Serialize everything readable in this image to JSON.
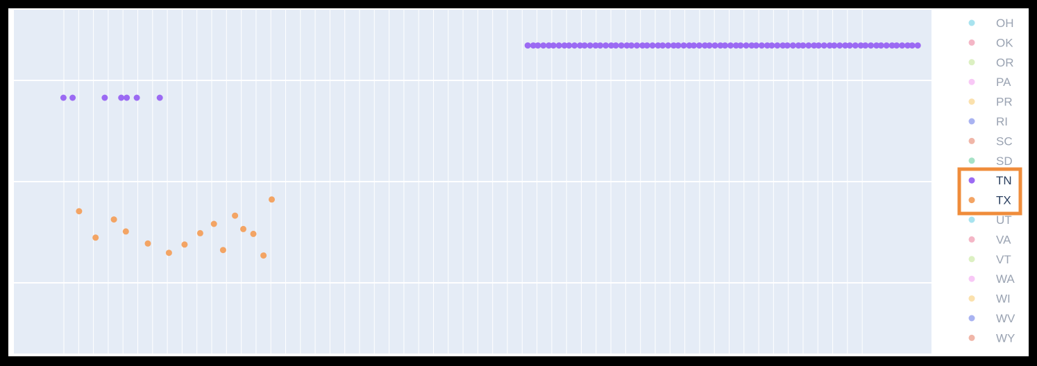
{
  "chart_data": {
    "type": "scatter",
    "title": "",
    "xlabel": "",
    "ylabel": "",
    "grid": true,
    "xlim": [
      0,
      100
    ],
    "ylim": [
      0,
      100
    ],
    "legend_placement": "right",
    "legend": [
      {
        "label": "OH",
        "color": "#a8e3ef",
        "highlighted": false
      },
      {
        "label": "OK",
        "color": "#f4b6c6",
        "highlighted": false
      },
      {
        "label": "OR",
        "color": "#dcf0c2",
        "highlighted": false
      },
      {
        "label": "PA",
        "color": "#f8c8f6",
        "highlighted": false
      },
      {
        "label": "PR",
        "color": "#fbe1ad",
        "highlighted": false
      },
      {
        "label": "RI",
        "color": "#a9b3f1",
        "highlighted": false
      },
      {
        "label": "SC",
        "color": "#f0b6a8",
        "highlighted": false
      },
      {
        "label": "SD",
        "color": "#a6e2c6",
        "highlighted": false
      },
      {
        "label": "TN",
        "color": "#9b6af3",
        "highlighted": true
      },
      {
        "label": "TX",
        "color": "#f3a464",
        "highlighted": true
      },
      {
        "label": "UT",
        "color": "#a8e3ef",
        "highlighted": false
      },
      {
        "label": "VA",
        "color": "#f4b6c6",
        "highlighted": false
      },
      {
        "label": "VT",
        "color": "#dcf0c2",
        "highlighted": false
      },
      {
        "label": "WA",
        "color": "#f8c8f6",
        "highlighted": false
      },
      {
        "label": "WI",
        "color": "#fbe1ad",
        "highlighted": false
      },
      {
        "label": "WV",
        "color": "#a9b3f1",
        "highlighted": false
      },
      {
        "label": "WY",
        "color": "#f0b6a8",
        "highlighted": false
      }
    ],
    "series": [
      {
        "color": "#9b6af3",
        "points": [
          [
            5.4,
            74.4
          ],
          [
            6.4,
            74.4
          ],
          [
            9.9,
            74.4
          ],
          [
            11.7,
            74.4
          ],
          [
            12.3,
            74.4
          ],
          [
            13.4,
            74.4
          ],
          [
            15.9,
            74.4
          ],
          [
            56.0,
            89.6
          ],
          [
            56.6,
            89.6
          ],
          [
            57.1,
            89.6
          ],
          [
            57.7,
            89.6
          ],
          [
            58.3,
            89.6
          ],
          [
            58.8,
            89.6
          ],
          [
            59.4,
            89.6
          ],
          [
            60.0,
            89.6
          ],
          [
            60.5,
            89.6
          ],
          [
            61.1,
            89.6
          ],
          [
            61.7,
            89.6
          ],
          [
            62.2,
            89.6
          ],
          [
            62.8,
            89.6
          ],
          [
            63.4,
            89.6
          ],
          [
            63.9,
            89.6
          ],
          [
            64.5,
            89.6
          ],
          [
            65.1,
            89.6
          ],
          [
            65.6,
            89.6
          ],
          [
            66.2,
            89.6
          ],
          [
            66.8,
            89.6
          ],
          [
            67.3,
            89.6
          ],
          [
            67.9,
            89.6
          ],
          [
            68.5,
            89.6
          ],
          [
            69.0,
            89.6
          ],
          [
            69.6,
            89.6
          ],
          [
            70.2,
            89.6
          ],
          [
            70.7,
            89.6
          ],
          [
            71.3,
            89.6
          ],
          [
            71.9,
            89.6
          ],
          [
            72.4,
            89.6
          ],
          [
            73.0,
            89.6
          ],
          [
            73.6,
            89.6
          ],
          [
            74.1,
            89.6
          ],
          [
            74.7,
            89.6
          ],
          [
            75.3,
            89.6
          ],
          [
            75.8,
            89.6
          ],
          [
            76.4,
            89.6
          ],
          [
            77.0,
            89.6
          ],
          [
            77.5,
            89.6
          ],
          [
            78.1,
            89.6
          ],
          [
            78.7,
            89.6
          ],
          [
            79.2,
            89.6
          ],
          [
            79.8,
            89.6
          ],
          [
            80.4,
            89.6
          ],
          [
            80.9,
            89.6
          ],
          [
            81.5,
            89.6
          ],
          [
            82.1,
            89.6
          ],
          [
            82.6,
            89.6
          ],
          [
            83.2,
            89.6
          ],
          [
            83.8,
            89.6
          ],
          [
            84.3,
            89.6
          ],
          [
            84.9,
            89.6
          ],
          [
            85.5,
            89.6
          ],
          [
            86.0,
            89.6
          ],
          [
            86.6,
            89.6
          ],
          [
            87.2,
            89.6
          ],
          [
            87.7,
            89.6
          ],
          [
            88.3,
            89.6
          ],
          [
            88.9,
            89.6
          ],
          [
            89.4,
            89.6
          ],
          [
            90.0,
            89.6
          ],
          [
            90.6,
            89.6
          ],
          [
            91.1,
            89.6
          ],
          [
            91.7,
            89.6
          ],
          [
            92.3,
            89.6
          ],
          [
            92.8,
            89.6
          ],
          [
            93.4,
            89.6
          ],
          [
            94.0,
            89.6
          ],
          [
            94.5,
            89.6
          ],
          [
            95.1,
            89.6
          ],
          [
            95.7,
            89.6
          ],
          [
            96.2,
            89.6
          ],
          [
            96.8,
            89.6
          ],
          [
            97.4,
            89.6
          ],
          [
            97.9,
            89.6
          ],
          [
            98.5,
            89.6
          ]
        ]
      },
      {
        "color": "#f3a464",
        "points": [
          [
            7.1,
            41.4
          ],
          [
            8.9,
            33.7
          ],
          [
            10.9,
            39.0
          ],
          [
            12.2,
            35.5
          ],
          [
            14.6,
            32.0
          ],
          [
            16.9,
            29.3
          ],
          [
            18.6,
            31.7
          ],
          [
            20.3,
            35.0
          ],
          [
            21.8,
            37.7
          ],
          [
            22.8,
            30.1
          ],
          [
            24.1,
            40.1
          ],
          [
            25.0,
            36.2
          ],
          [
            26.1,
            34.8
          ],
          [
            27.2,
            28.5
          ],
          [
            28.1,
            44.8
          ]
        ]
      }
    ]
  }
}
